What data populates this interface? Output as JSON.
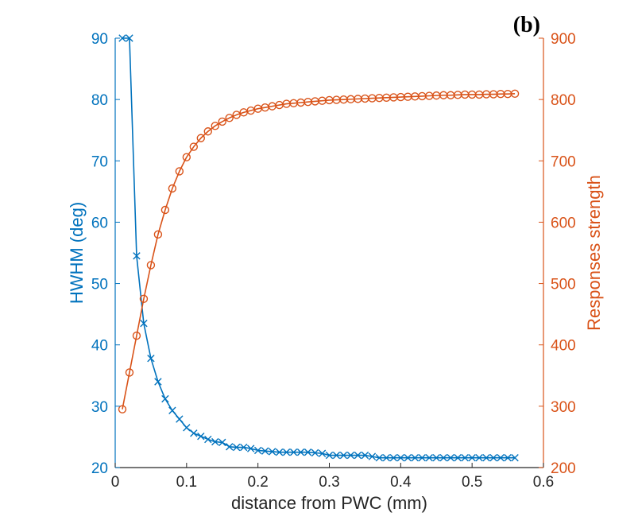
{
  "panel_label": "(b)",
  "colors": {
    "left": "#0072BD",
    "right": "#D95319",
    "axis": "#262626"
  },
  "chart_data": {
    "type": "line",
    "title": "",
    "xlabel": "distance from PWC (mm)",
    "xlim": [
      0,
      0.6
    ],
    "xticks": [
      0,
      0.1,
      0.2,
      0.3,
      0.4,
      0.5,
      0.6
    ],
    "xtick_labels": [
      "0",
      "0.1",
      "0.2",
      "0.3",
      "0.4",
      "0.5",
      "0.6"
    ],
    "ylabel_left": "HWHM (deg)",
    "ylim_left": [
      20,
      90
    ],
    "yticks_left": [
      20,
      30,
      40,
      50,
      60,
      70,
      80,
      90
    ],
    "ylabel_right": "Responses strength",
    "ylim_right": [
      200,
      900
    ],
    "yticks_right": [
      200,
      300,
      400,
      500,
      600,
      700,
      800,
      900
    ],
    "x": [
      0.01,
      0.02,
      0.03,
      0.04,
      0.05,
      0.06,
      0.07,
      0.08,
      0.09,
      0.1,
      0.11,
      0.12,
      0.13,
      0.14,
      0.15,
      0.16,
      0.17,
      0.18,
      0.19,
      0.2,
      0.21,
      0.22,
      0.23,
      0.24,
      0.25,
      0.26,
      0.27,
      0.28,
      0.29,
      0.3,
      0.31,
      0.32,
      0.33,
      0.34,
      0.35,
      0.36,
      0.37,
      0.38,
      0.39,
      0.4,
      0.41,
      0.42,
      0.43,
      0.44,
      0.45,
      0.46,
      0.47,
      0.48,
      0.49,
      0.5,
      0.51,
      0.52,
      0.53,
      0.54,
      0.55,
      0.56
    ],
    "series": [
      {
        "name": "HWHM (deg)",
        "axis": "left",
        "marker": "x",
        "values": [
          90,
          90,
          54.5,
          43.5,
          37.8,
          34,
          31.2,
          29.3,
          27.9,
          26.5,
          25.6,
          25.1,
          24.6,
          24.2,
          24.1,
          23.4,
          23.3,
          23.3,
          23.1,
          22.8,
          22.7,
          22.6,
          22.5,
          22.5,
          22.5,
          22.5,
          22.5,
          22.4,
          22.3,
          22,
          22,
          22,
          22,
          22,
          22,
          21.8,
          21.6,
          21.6,
          21.6,
          21.6,
          21.6,
          21.6,
          21.6,
          21.6,
          21.6,
          21.6,
          21.6,
          21.6,
          21.6,
          21.6,
          21.6,
          21.6,
          21.6,
          21.6,
          21.6,
          21.6
        ]
      },
      {
        "name": "Responses strength",
        "axis": "right",
        "marker": "o",
        "values": [
          295,
          355,
          415,
          475,
          530,
          580,
          620,
          655,
          683,
          706,
          723,
          737,
          748,
          757,
          764,
          770,
          775,
          779,
          782,
          785,
          787,
          789,
          791,
          793,
          794,
          795,
          796,
          797,
          798,
          799,
          799.5,
          800,
          800.5,
          801,
          801.5,
          802,
          802.5,
          803,
          803.5,
          804,
          804.5,
          805,
          805.5,
          806,
          806.5,
          807,
          807,
          807.5,
          808,
          808,
          808,
          808.5,
          808.5,
          809,
          809,
          809.5
        ]
      }
    ]
  }
}
